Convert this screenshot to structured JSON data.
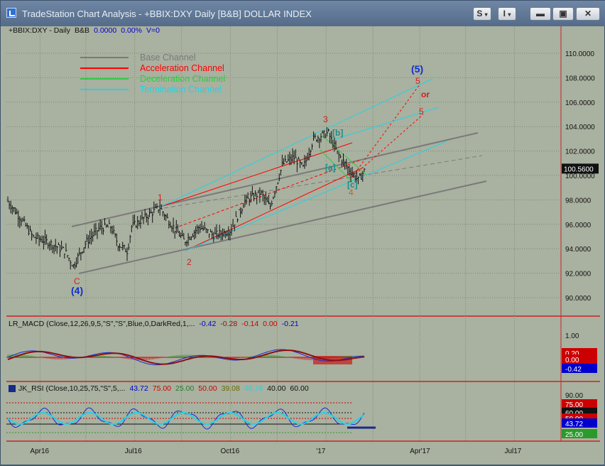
{
  "window": {
    "title": "TradeStation Chart Analysis - +BBIX:DXY Daily [B&B] DOLLAR INDEX",
    "s_button": "S",
    "i_button": "I"
  },
  "header": {
    "symbol": "+BBIX:DXY - Daily",
    "tag": "B&B",
    "change": "0.0000",
    "change_pct": "0.00%",
    "volume": "V=0"
  },
  "legend": [
    {
      "label": "Base Channel",
      "color": "#7a7a7a"
    },
    {
      "label": "Acceleration Channel",
      "color": "#ff0000"
    },
    {
      "label": "Deceleration Channel",
      "color": "#2ecc40"
    },
    {
      "label": "Termination Channel",
      "color": "#22d3e6"
    }
  ],
  "price_axis": {
    "ticks": [
      "110.0000",
      "108.0000",
      "106.0000",
      "104.0000",
      "102.0000",
      "100.0000",
      "98.0000",
      "96.0000",
      "94.0000",
      "92.0000",
      "90.0000"
    ],
    "last_price": "100.5600"
  },
  "wave_labels": {
    "w1": "1",
    "w2": "2",
    "w3": "3",
    "w4": "4",
    "w4_low": "C",
    "big4": "(4)",
    "big5": "(5)",
    "w5a": "5",
    "w5b": "5",
    "or": "or",
    "a": "[a]",
    "b": "[b]",
    "c": "[c]"
  },
  "macd": {
    "header": [
      "LR_MACD (Close,12,26,9,5,\"S\",\"S\",Blue,0,DarkRed,1,...",
      "-0.42",
      "-0.28",
      "-0.14",
      "0.00",
      "-0.21"
    ],
    "axis": [
      "1.00",
      "0.20",
      "0.00",
      "-0.42"
    ]
  },
  "rsi": {
    "header": [
      "JK_RSI (Close,10,25,75,\"S\",5,...",
      "43.72",
      "75.00",
      "25.00",
      "50.00",
      "39.08",
      "48.78",
      "40.00",
      "60.00"
    ],
    "axis": [
      "90.00",
      "75.00",
      "60.00",
      "50.00",
      "43.72",
      "25.00"
    ]
  },
  "time_axis": [
    "Apr16",
    "Jul16",
    "Oct16",
    "'17",
    "Apr'17",
    "Jul17"
  ],
  "chart_data": {
    "type": "ohlc",
    "title": "+BBIX:DXY Daily DOLLAR INDEX",
    "ylim": [
      89,
      111
    ],
    "y_ticks": [
      90,
      92,
      94,
      96,
      98,
      100,
      102,
      104,
      106,
      108,
      110
    ],
    "x_labels": [
      "Apr16",
      "Jul16",
      "Oct16",
      "'17",
      "Apr'17",
      "Jul17"
    ],
    "last": 100.56,
    "close_path": [
      [
        "2016-03-01",
        97.9
      ],
      [
        "2016-03-15",
        96.3
      ],
      [
        "2016-03-25",
        95.0
      ],
      [
        "2016-04-10",
        94.5
      ],
      [
        "2016-04-25",
        93.8
      ],
      [
        "2016-05-03",
        92.6
      ],
      [
        "2016-05-15",
        94.5
      ],
      [
        "2016-05-28",
        95.7
      ],
      [
        "2016-06-08",
        95.8
      ],
      [
        "2016-06-15",
        94.4
      ],
      [
        "2016-06-24",
        93.8
      ],
      [
        "2016-06-28",
        95.8
      ],
      [
        "2016-07-10",
        96.5
      ],
      [
        "2016-07-25",
        97.4
      ],
      [
        "2016-08-05",
        96.0
      ],
      [
        "2016-08-18",
        94.6
      ],
      [
        "2016-09-01",
        95.8
      ],
      [
        "2016-09-15",
        95.1
      ],
      [
        "2016-10-01",
        95.5
      ],
      [
        "2016-10-15",
        97.9
      ],
      [
        "2016-10-30",
        98.6
      ],
      [
        "2016-11-08",
        97.4
      ],
      [
        "2016-11-20",
        100.9
      ],
      [
        "2016-12-01",
        101.5
      ],
      [
        "2016-12-10",
        100.6
      ],
      [
        "2016-12-20",
        103.0
      ],
      [
        "2017-01-03",
        103.5
      ],
      [
        "2017-01-12",
        101.8
      ],
      [
        "2017-01-22",
        100.6
      ],
      [
        "2017-02-01",
        99.6
      ],
      [
        "2017-02-08",
        100.56
      ]
    ]
  }
}
